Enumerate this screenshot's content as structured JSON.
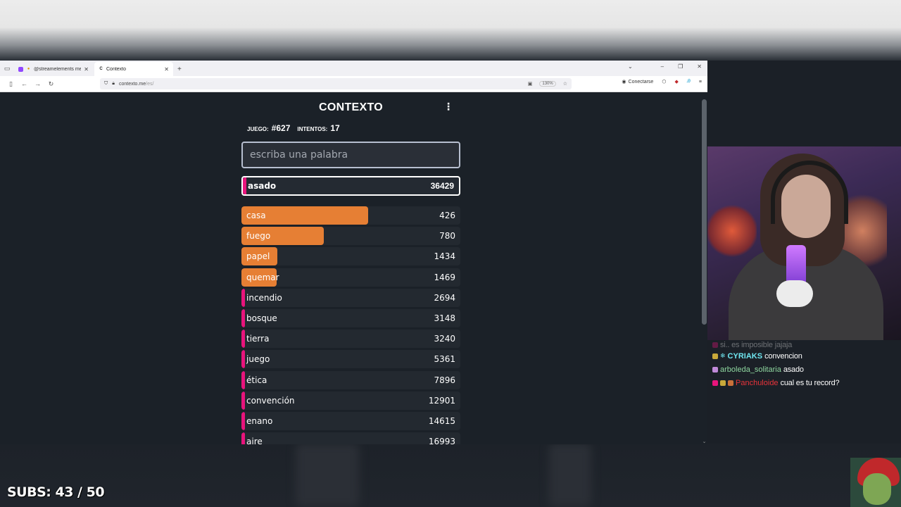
{
  "browser": {
    "tabs": [
      {
        "title": "@streamelements mention",
        "active": false,
        "favicon": "twitch-icon"
      },
      {
        "title": "Contexto",
        "active": true,
        "favicon": "contexto-icon"
      }
    ],
    "url_host": "contexto.me",
    "url_path": "/es/",
    "zoom": "130%",
    "connect_label": "Conectarse"
  },
  "game": {
    "title": "CONTEXTO",
    "game_label": "JUEGO:",
    "game_number": "#627",
    "attempts_label": "INTENTOS:",
    "attempts": "17",
    "input_placeholder": "escriba una palabra",
    "last_guess": {
      "word": "asado",
      "distance": "36429"
    },
    "guesses": [
      {
        "word": "casa",
        "distance": "426",
        "fill": 0.58,
        "color": "#e67f34"
      },
      {
        "word": "fuego",
        "distance": "780",
        "fill": 0.375,
        "color": "#e67f34"
      },
      {
        "word": "papel",
        "distance": "1434",
        "fill": 0.165,
        "color": "#e67f34"
      },
      {
        "word": "quemar",
        "distance": "1469",
        "fill": 0.16,
        "color": "#e67f34"
      },
      {
        "word": "incendio",
        "distance": "2694",
        "fill": 0.035,
        "color": "#e8147c"
      },
      {
        "word": "bosque",
        "distance": "3148",
        "fill": 0.025,
        "color": "#e8147c"
      },
      {
        "word": "tierra",
        "distance": "3240",
        "fill": 0.022,
        "color": "#e8147c"
      },
      {
        "word": "juego",
        "distance": "5361",
        "fill": 0.02,
        "color": "#e8147c"
      },
      {
        "word": "ética",
        "distance": "7896",
        "fill": 0.018,
        "color": "#e8147c"
      },
      {
        "word": "convención",
        "distance": "12901",
        "fill": 0.016,
        "color": "#e8147c"
      },
      {
        "word": "enano",
        "distance": "14615",
        "fill": 0.016,
        "color": "#e8147c"
      },
      {
        "word": "aire",
        "distance": "16993",
        "fill": 0.016,
        "color": "#e8147c"
      }
    ]
  },
  "chat": {
    "faded_line": {
      "msg": "si.. es imposible jajaja"
    },
    "lines": [
      {
        "user": "CYRIAKS",
        "msg": "convencion",
        "color": "#6fe6f0"
      },
      {
        "user": "arboleda_solitaria",
        "msg": "asado",
        "color": "#8fd8a0"
      },
      {
        "user": "Panchuloide",
        "msg": "cual es tu record?",
        "color": "#e8333a"
      }
    ]
  },
  "overlay": {
    "subs": "SUBS: 43 / 50"
  },
  "colors": {
    "accent_orange": "#e67f34",
    "accent_pink": "#e8147c",
    "page_bg": "#1b2128"
  }
}
